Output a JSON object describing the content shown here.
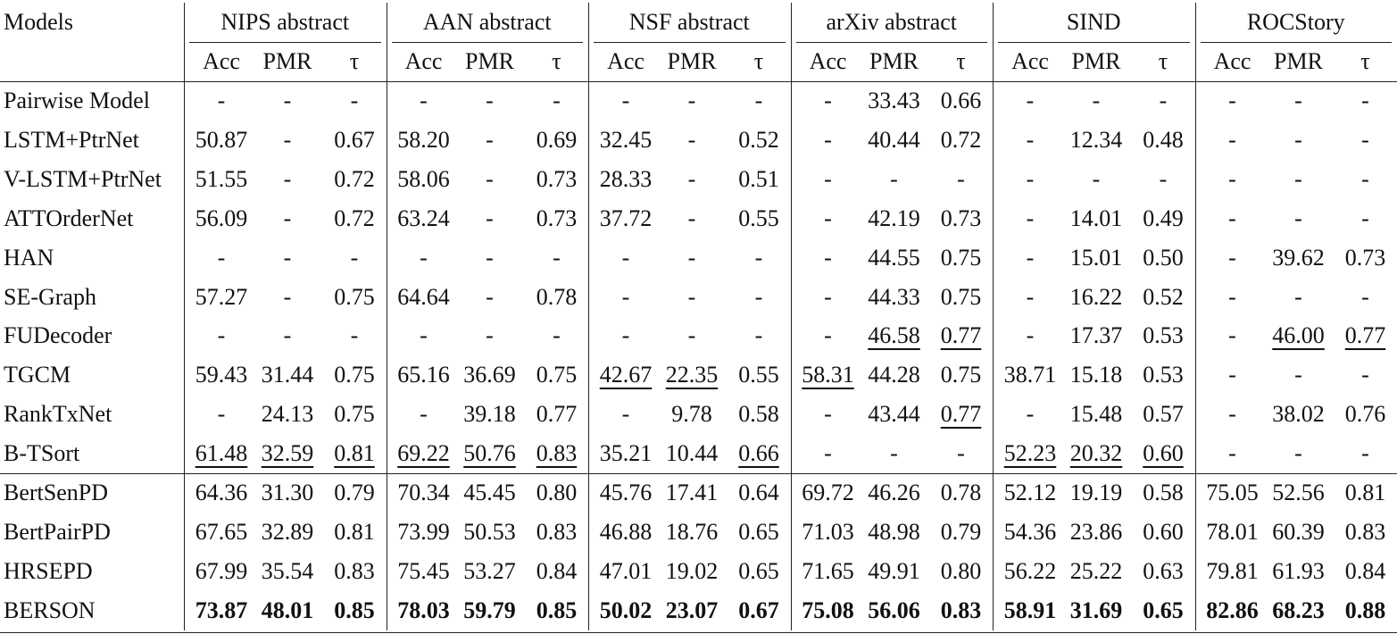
{
  "table": {
    "header": {
      "models": "Models",
      "groups": [
        {
          "name": "NIPS abstract",
          "columns": [
            "Acc",
            "PMR",
            "τ"
          ]
        },
        {
          "name": "AAN abstract",
          "columns": [
            "Acc",
            "PMR",
            "τ"
          ]
        },
        {
          "name": "NSF abstract",
          "columns": [
            "Acc",
            "PMR",
            "τ"
          ]
        },
        {
          "name": "arXiv abstract",
          "columns": [
            "Acc",
            "PMR",
            "τ"
          ]
        },
        {
          "name": "SIND",
          "columns": [
            "Acc",
            "PMR",
            "τ"
          ]
        },
        {
          "name": "ROCStory",
          "columns": [
            "Acc",
            "PMR",
            "τ"
          ]
        }
      ]
    },
    "rows": [
      {
        "name": "Pairwise Model",
        "cells": [
          "-",
          "-",
          "-",
          "-",
          "-",
          "-",
          "-",
          "-",
          "-",
          "-",
          "33.43",
          "0.66",
          "-",
          "-",
          "-",
          "-",
          "-",
          "-"
        ]
      },
      {
        "name": "LSTM+PtrNet",
        "cells": [
          "50.87",
          "-",
          "0.67",
          "58.20",
          "-",
          "0.69",
          "32.45",
          "-",
          "0.52",
          "-",
          "40.44",
          "0.72",
          "-",
          "12.34",
          "0.48",
          "-",
          "-",
          "-"
        ]
      },
      {
        "name": "V-LSTM+PtrNet",
        "cells": [
          "51.55",
          "-",
          "0.72",
          "58.06",
          "-",
          "0.73",
          "28.33",
          "-",
          "0.51",
          "-",
          "-",
          "-",
          "-",
          "-",
          "-",
          "-",
          "-",
          "-"
        ]
      },
      {
        "name": "ATTOrderNet",
        "cells": [
          "56.09",
          "-",
          "0.72",
          "63.24",
          "-",
          "0.73",
          "37.72",
          "-",
          "0.55",
          "-",
          "42.19",
          "0.73",
          "-",
          "14.01",
          "0.49",
          "-",
          "-",
          "-"
        ]
      },
      {
        "name": "HAN",
        "cells": [
          "-",
          "-",
          "-",
          "-",
          "-",
          "-",
          "-",
          "-",
          "-",
          "-",
          "44.55",
          "0.75",
          "-",
          "15.01",
          "0.50",
          "-",
          "39.62",
          "0.73"
        ]
      },
      {
        "name": "SE-Graph",
        "cells": [
          "57.27",
          "-",
          "0.75",
          "64.64",
          "-",
          "0.78",
          "-",
          "-",
          "-",
          "-",
          "44.33",
          "0.75",
          "-",
          "16.22",
          "0.52",
          "-",
          "-",
          "-"
        ]
      },
      {
        "name": "FUDecoder",
        "cells": [
          "-",
          "-",
          "-",
          "-",
          "-",
          "-",
          "-",
          "-",
          "-",
          "-",
          "46.58",
          "0.77",
          "-",
          "17.37",
          "0.53",
          "-",
          "46.00",
          "0.77"
        ]
      },
      {
        "name": "TGCM",
        "cells": [
          "59.43",
          "31.44",
          "0.75",
          "65.16",
          "36.69",
          "0.75",
          "42.67",
          "22.35",
          "0.55",
          "58.31",
          "44.28",
          "0.75",
          "38.71",
          "15.18",
          "0.53",
          "-",
          "-",
          "-"
        ]
      },
      {
        "name": "RankTxNet",
        "cells": [
          "-",
          "24.13",
          "0.75",
          "-",
          "39.18",
          "0.77",
          "-",
          "9.78",
          "0.58",
          "-",
          "43.44",
          "0.77",
          "-",
          "15.48",
          "0.57",
          "-",
          "38.02",
          "0.76"
        ]
      },
      {
        "name": "B-TSort",
        "cells": [
          "61.48",
          "32.59",
          "0.81",
          "69.22",
          "50.76",
          "0.83",
          "35.21",
          "10.44",
          "0.66",
          "-",
          "-",
          "-",
          "52.23",
          "20.32",
          "0.60",
          "-",
          "-",
          "-"
        ]
      },
      {
        "name": "BertSenPD",
        "cells": [
          "64.36",
          "31.30",
          "0.79",
          "70.34",
          "45.45",
          "0.80",
          "45.76",
          "17.41",
          "0.64",
          "69.72",
          "46.26",
          "0.78",
          "52.12",
          "19.19",
          "0.58",
          "75.05",
          "52.56",
          "0.81"
        ]
      },
      {
        "name": "BertPairPD",
        "cells": [
          "67.65",
          "32.89",
          "0.81",
          "73.99",
          "50.53",
          "0.83",
          "46.88",
          "18.76",
          "0.65",
          "71.03",
          "48.98",
          "0.79",
          "54.36",
          "23.86",
          "0.60",
          "78.01",
          "60.39",
          "0.83"
        ]
      },
      {
        "name": "HRSEPD",
        "cells": [
          "67.99",
          "35.54",
          "0.83",
          "75.45",
          "53.27",
          "0.84",
          "47.01",
          "19.02",
          "0.65",
          "71.65",
          "49.91",
          "0.80",
          "56.22",
          "25.22",
          "0.63",
          "79.81",
          "61.93",
          "0.84"
        ]
      },
      {
        "name": "BERSON",
        "cells": [
          "73.87",
          "48.01",
          "0.85",
          "78.03",
          "59.79",
          "0.85",
          "50.02",
          "23.07",
          "0.67",
          "75.08",
          "56.06",
          "0.83",
          "58.91",
          "31.69",
          "0.65",
          "82.86",
          "68.23",
          "0.88"
        ]
      }
    ]
  }
}
